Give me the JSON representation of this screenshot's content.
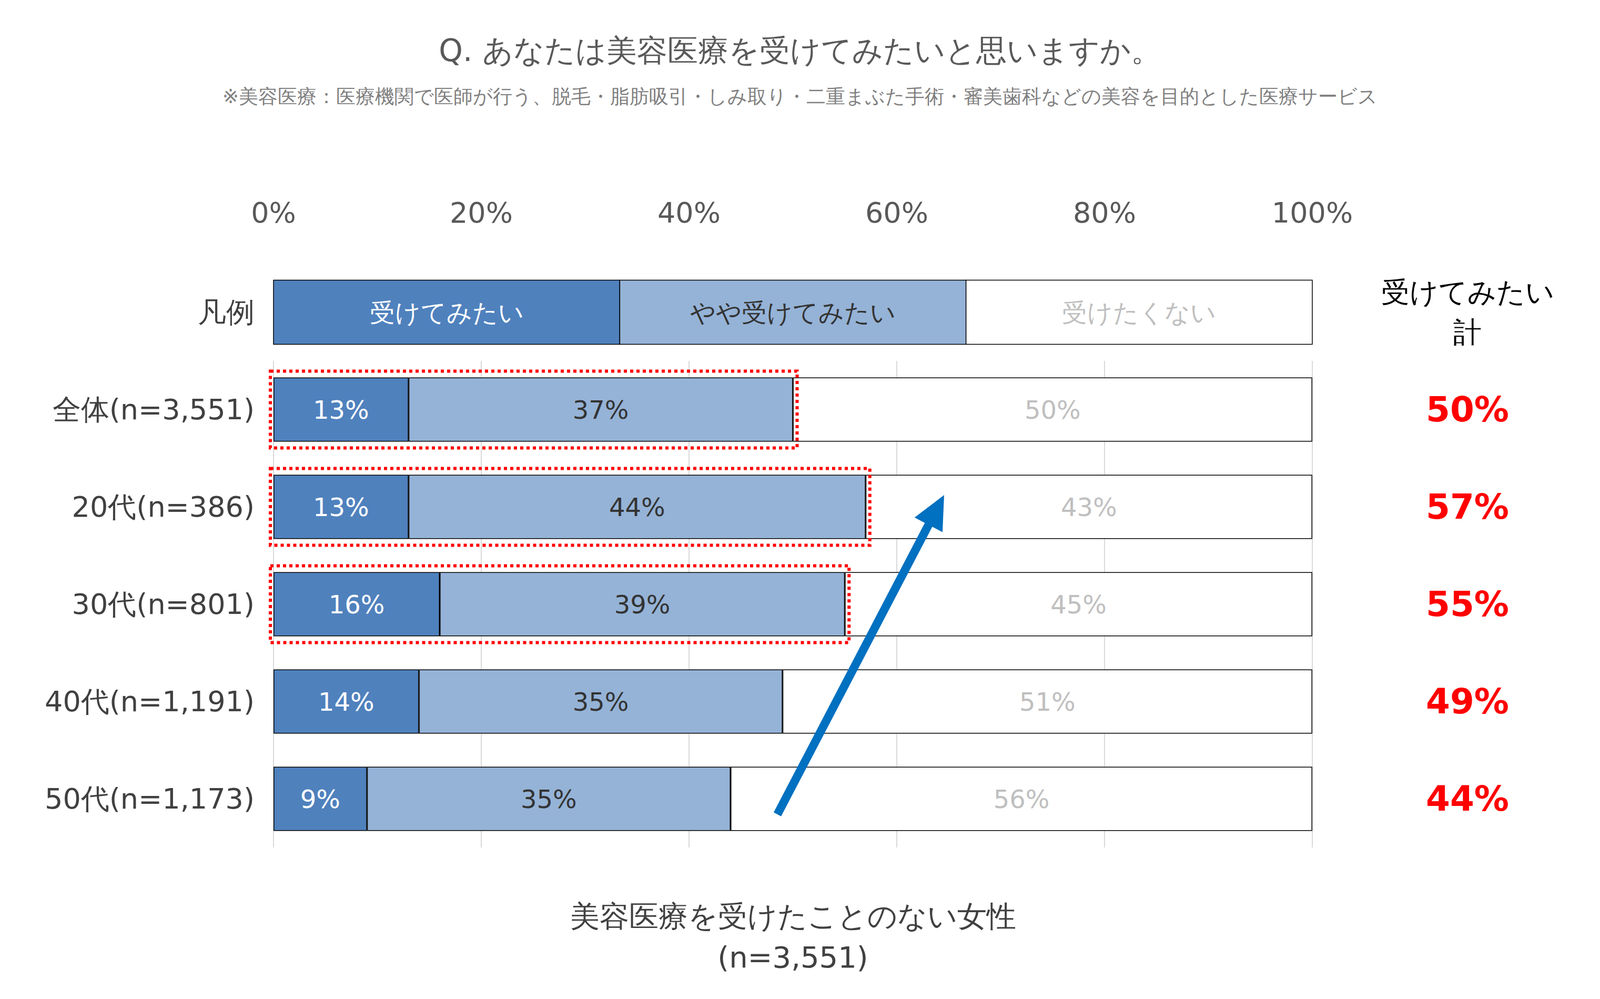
{
  "chart_data": {
    "type": "bar",
    "orientation": "horizontal",
    "stacked": true,
    "title": "Q. あなたは美容医療を受けてみたいと思いますか。",
    "subtitle": "※美容医療：医療機関で医師が行う、脱毛・脂肪吸引・しみ取り・二重まぶた手術・審美歯科などの美容を目的とした医療サービス",
    "legend_title": "凡例",
    "categories": [
      "全体(n=3,551)",
      "20代(n=386)",
      "30代(n=801)",
      "40代(n=1,191)",
      "50代(n=1,173)"
    ],
    "series": [
      {
        "name": "受けてみたい",
        "color": "#4f81bd",
        "values": [
          13,
          13,
          16,
          14,
          9
        ],
        "value_labels": [
          "13%",
          "13%",
          "16%",
          "14%",
          "9%"
        ]
      },
      {
        "name": "やや受けてみたい",
        "color": "#95b3d7",
        "values": [
          37,
          44,
          39,
          35,
          35
        ],
        "value_labels": [
          "37%",
          "44%",
          "39%",
          "35%",
          "35%"
        ]
      },
      {
        "name": "受けたくない",
        "color": "#ffffff",
        "values": [
          50,
          43,
          45,
          51,
          56
        ],
        "value_labels": [
          "50%",
          "43%",
          "45%",
          "51%",
          "56%"
        ]
      }
    ],
    "totals_title": "受けてみたい\n計",
    "totals": [
      50,
      57,
      55,
      49,
      44
    ],
    "total_labels": [
      "50%",
      "57%",
      "55%",
      "49%",
      "44%"
    ],
    "highlighted_categories": [
      "全体(n=3,551)",
      "20代(n=386)",
      "30代(n=801)"
    ],
    "xlabel": "美容医療を受けたことのない女性\n(n=3,551)",
    "xlim": [
      0,
      100
    ],
    "xticks": [
      {
        "value": 0,
        "label": "0%"
      },
      {
        "value": 20,
        "label": "20%"
      },
      {
        "value": 40,
        "label": "40%"
      },
      {
        "value": 60,
        "label": "60%"
      },
      {
        "value": 80,
        "label": "80%"
      },
      {
        "value": 100,
        "label": "100%"
      }
    ],
    "grid": true,
    "data_labels": true
  }
}
